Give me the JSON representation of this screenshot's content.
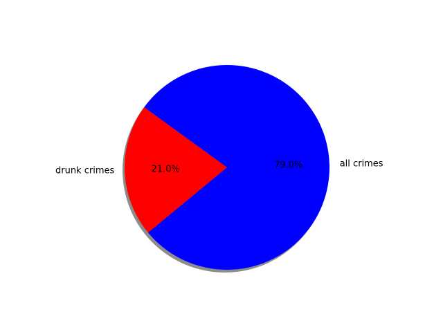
{
  "chart_data": {
    "type": "pie",
    "slices": [
      {
        "label": "drunk crimes",
        "value": 21.0,
        "pct_label": "21.0%",
        "color": "#ff0000"
      },
      {
        "label": "all crimes",
        "value": 79.0,
        "pct_label": "79.0%",
        "color": "#0000ff"
      }
    ],
    "start_angle_deg": 144,
    "direction": "counterclockwise",
    "shadow": true,
    "title": ""
  }
}
